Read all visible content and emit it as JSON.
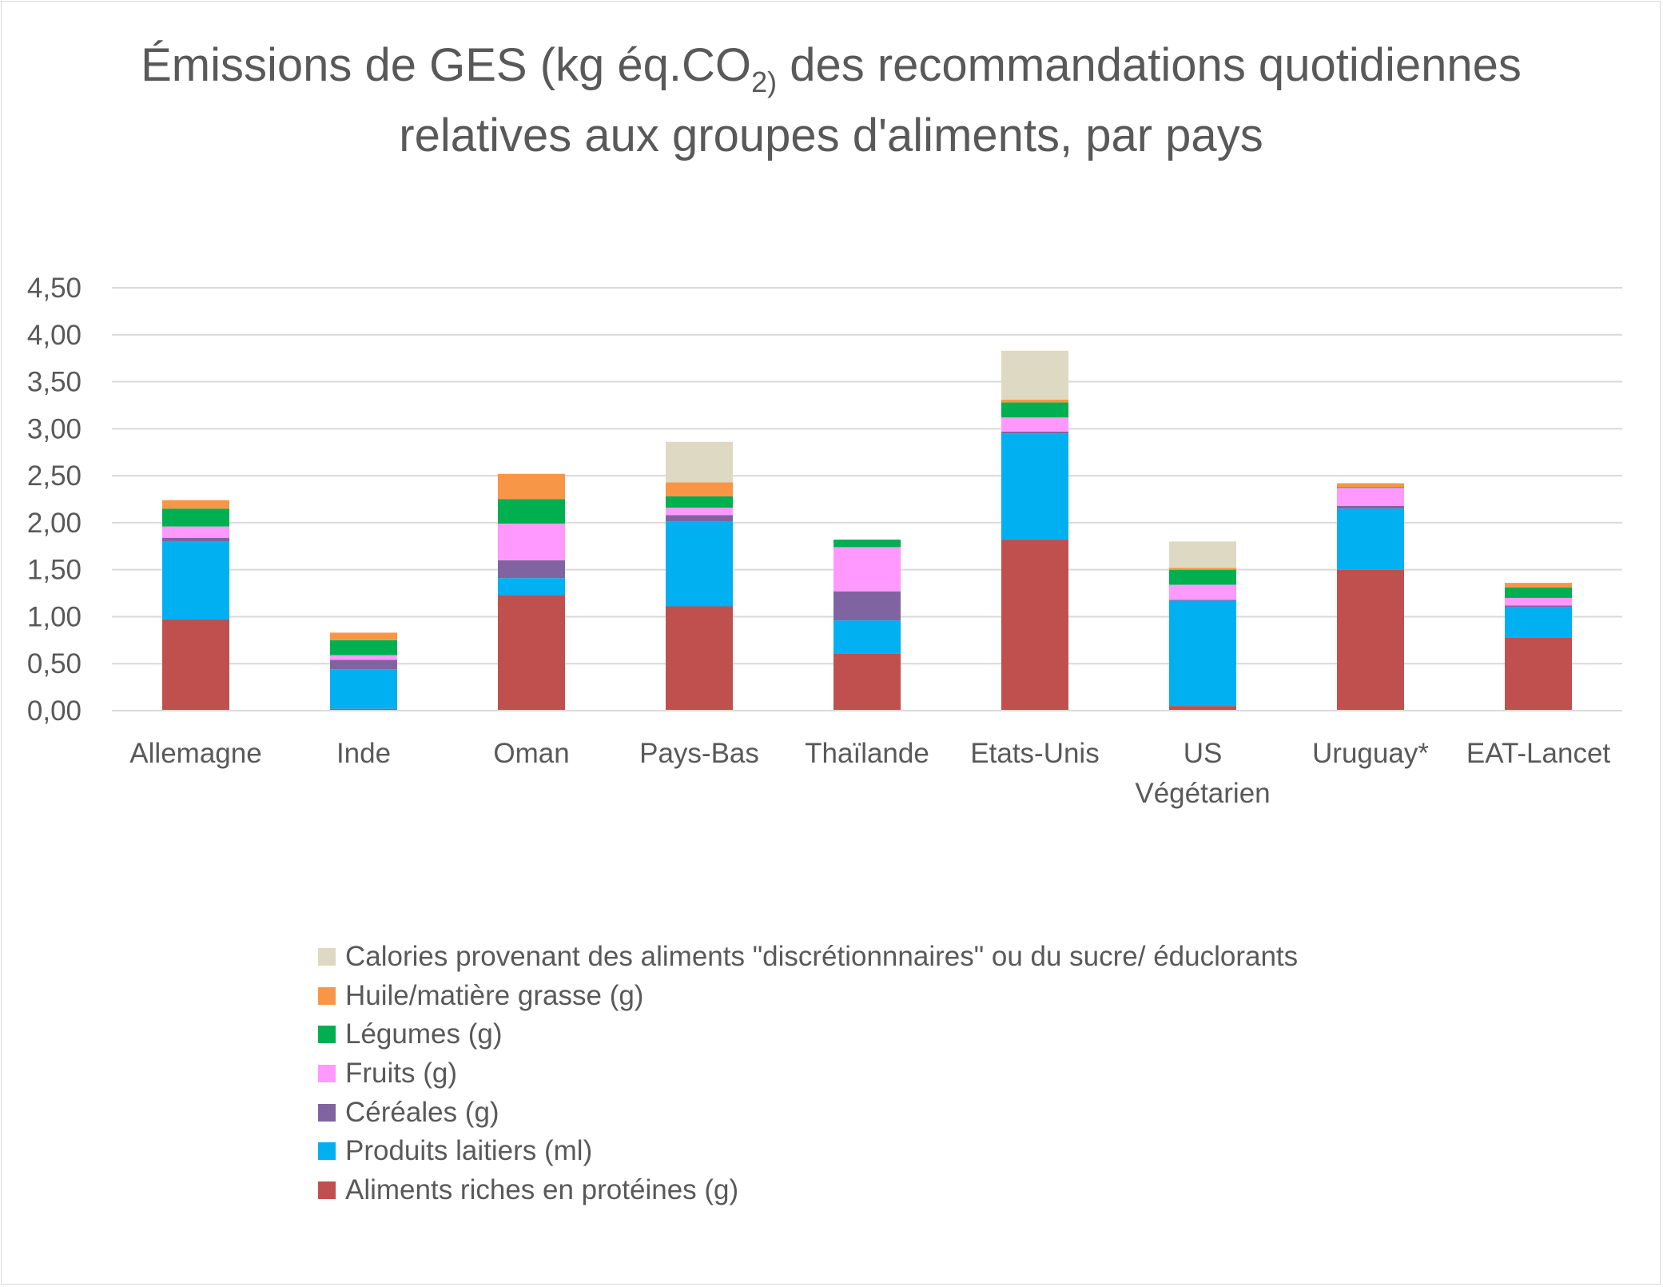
{
  "chart_data": {
    "type": "bar",
    "stacked": true,
    "title": {
      "before": "Émissions de GES (kg éq.CO",
      "subscript": "2)",
      "after": " des recommandations quotidiennes relatives aux groupes d'aliments, par pays"
    },
    "xlabel": "",
    "ylabel": "",
    "ylim": [
      0,
      4.5
    ],
    "yticks": [
      "0,00",
      "0,50",
      "1,00",
      "1,50",
      "2,00",
      "2,50",
      "3,00",
      "3,50",
      "4,00",
      "4,50"
    ],
    "grid": true,
    "legend_position": "bottom",
    "categories": [
      "Allemagne",
      "Inde",
      "Oman",
      "Pays-Bas",
      "Thaïlande",
      "Etats-Unis",
      "US Végétarien",
      "Uruguay*",
      "EAT-Lancet"
    ],
    "series": [
      {
        "name": "Aliments riches en protéines (g)",
        "color": "#c0504d",
        "values": [
          0.97,
          0.02,
          1.23,
          1.11,
          0.61,
          1.82,
          0.05,
          1.5,
          0.78
        ]
      },
      {
        "name": "Produits laitiers (ml)",
        "color": "#00b0f0",
        "values": [
          0.83,
          0.42,
          0.18,
          0.9,
          0.35,
          1.13,
          1.12,
          0.65,
          0.32
        ]
      },
      {
        "name": "Céréales (g)",
        "color": "#8064a2",
        "values": [
          0.04,
          0.1,
          0.19,
          0.07,
          0.31,
          0.02,
          0.01,
          0.03,
          0.02
        ]
      },
      {
        "name": "Fruits (g)",
        "color": "#ff99ff",
        "values": [
          0.12,
          0.05,
          0.39,
          0.08,
          0.47,
          0.15,
          0.16,
          0.19,
          0.08
        ]
      },
      {
        "name": "Légumes (g)",
        "color": "#00b050",
        "values": [
          0.19,
          0.16,
          0.26,
          0.12,
          0.08,
          0.16,
          0.16,
          0.01,
          0.11
        ]
      },
      {
        "name": "Huile/matière grasse (g)",
        "color": "#f79646",
        "values": [
          0.09,
          0.08,
          0.27,
          0.15,
          0.0,
          0.03,
          0.02,
          0.04,
          0.05
        ]
      },
      {
        "name": "Calories provenant des aliments \"discrétionnnaires\" ou du sucre/ éduclorants",
        "color": "#ddd9c3",
        "values": [
          0.0,
          0.0,
          0.0,
          0.43,
          0.0,
          0.52,
          0.28,
          0.0,
          0.0
        ]
      }
    ]
  }
}
